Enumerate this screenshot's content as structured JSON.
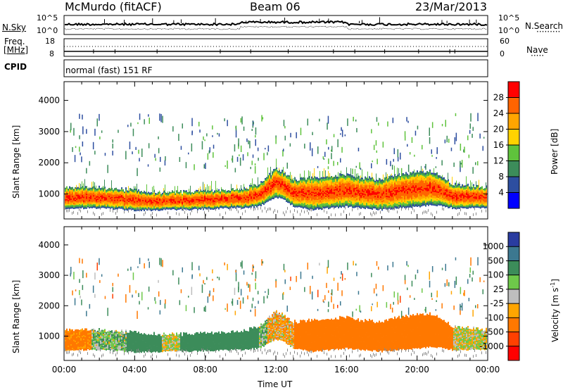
{
  "header": {
    "station": "McMurdo (fitACF)",
    "beam": "Beam 06",
    "date": "23/Mar/2013"
  },
  "noise_panel": {
    "left_label": "N.Sky",
    "right_label": "N.Search",
    "left_ticks": [
      "10^5",
      "10^0"
    ],
    "right_ticks": [
      "10^5",
      "10^0"
    ]
  },
  "freq_panel": {
    "left_label_line1": "Freq.",
    "left_label_line2": "[MHz]",
    "left_ticks": [
      "18",
      "8"
    ],
    "right_label": "Nave",
    "right_ticks": [
      "60",
      "0"
    ]
  },
  "cpid": {
    "label": "CPID",
    "value": "normal (fast) 151 RF"
  },
  "colors": {
    "power_scale": [
      "#0000ff",
      "#2d4ea0",
      "#3c8c5a",
      "#5fc33c",
      "#ffd200",
      "#ffa500",
      "#ff6400",
      "#ff0000"
    ],
    "velocity_scale": [
      "#2a3ca0",
      "#3c7890",
      "#3c8c5a",
      "#6ec84a",
      "#bebebe",
      "#ffa500",
      "#ff7800",
      "#ff4000",
      "#ff0000"
    ],
    "ground_scatter": "#8a8a8a"
  },
  "chart_data": [
    {
      "type": "heatmap",
      "title": "",
      "xlabel": "Time UT",
      "ylabel": "Slant Range [km]",
      "x_ticks": [
        "00:00",
        "04:00",
        "08:00",
        "12:00",
        "16:00",
        "20:00",
        "00:00"
      ],
      "y_ticks": [
        "1000",
        "2000",
        "3000",
        "4000"
      ],
      "ylim": [
        200,
        4600
      ],
      "colorbar": {
        "label": "Power [dB]",
        "ticks": [
          "4",
          "8",
          "12",
          "16",
          "20",
          "24",
          "28"
        ],
        "range": [
          0,
          32
        ]
      },
      "time_hours": [
        0,
        1,
        2,
        3,
        4,
        5,
        6,
        7,
        8,
        9,
        10,
        11,
        11.5,
        12,
        12.5,
        13,
        14,
        15,
        16,
        17,
        18,
        19,
        20,
        21,
        22,
        23,
        24
      ],
      "main_band_low_km": [
        500,
        550,
        550,
        520,
        480,
        480,
        500,
        500,
        520,
        540,
        560,
        600,
        750,
        900,
        800,
        600,
        500,
        550,
        600,
        550,
        500,
        550,
        600,
        650,
        550,
        550,
        550
      ],
      "main_band_high_km": [
        1200,
        1200,
        1200,
        1150,
        1100,
        1050,
        1050,
        1050,
        1050,
        1100,
        1150,
        1300,
        1550,
        1800,
        1650,
        1450,
        1500,
        1550,
        1600,
        1500,
        1450,
        1600,
        1700,
        1700,
        1300,
        1250,
        1200
      ],
      "peak_power_db": 30,
      "scattered_echo_range_km": [
        1800,
        3600
      ]
    },
    {
      "type": "heatmap",
      "title": "",
      "xlabel": "Time UT",
      "ylabel": "Slant Range [km]",
      "x_ticks": [
        "00:00",
        "04:00",
        "08:00",
        "12:00",
        "16:00",
        "20:00",
        "00:00"
      ],
      "y_ticks": [
        "1000",
        "2000",
        "3000",
        "4000"
      ],
      "ylim": [
        200,
        4600
      ],
      "colorbar": {
        "label": "Velocity [m s^-1]",
        "ticks": [
          "1000",
          "500",
          "100",
          "25",
          "-25",
          "-100",
          "-500",
          "-1000"
        ],
        "range": [
          -1000,
          1000
        ]
      },
      "velocity_segments": [
        {
          "from_hour": 0,
          "to_hour": 1.5,
          "velocity": -150
        },
        {
          "from_hour": 1.5,
          "to_hour": 3.5,
          "velocity": 60
        },
        {
          "from_hour": 3.5,
          "to_hour": 5.5,
          "velocity": 300
        },
        {
          "from_hour": 5.5,
          "to_hour": 6.5,
          "velocity": 0
        },
        {
          "from_hour": 6.5,
          "to_hour": 11.0,
          "velocity": 300
        },
        {
          "from_hour": 11.0,
          "to_hour": 11.5,
          "velocity": 60
        },
        {
          "from_hour": 11.5,
          "to_hour": 13.0,
          "velocity": -60
        },
        {
          "from_hour": 13.0,
          "to_hour": 22.0,
          "velocity": -250
        },
        {
          "from_hour": 22.0,
          "to_hour": 24.0,
          "velocity": 0
        }
      ]
    }
  ]
}
